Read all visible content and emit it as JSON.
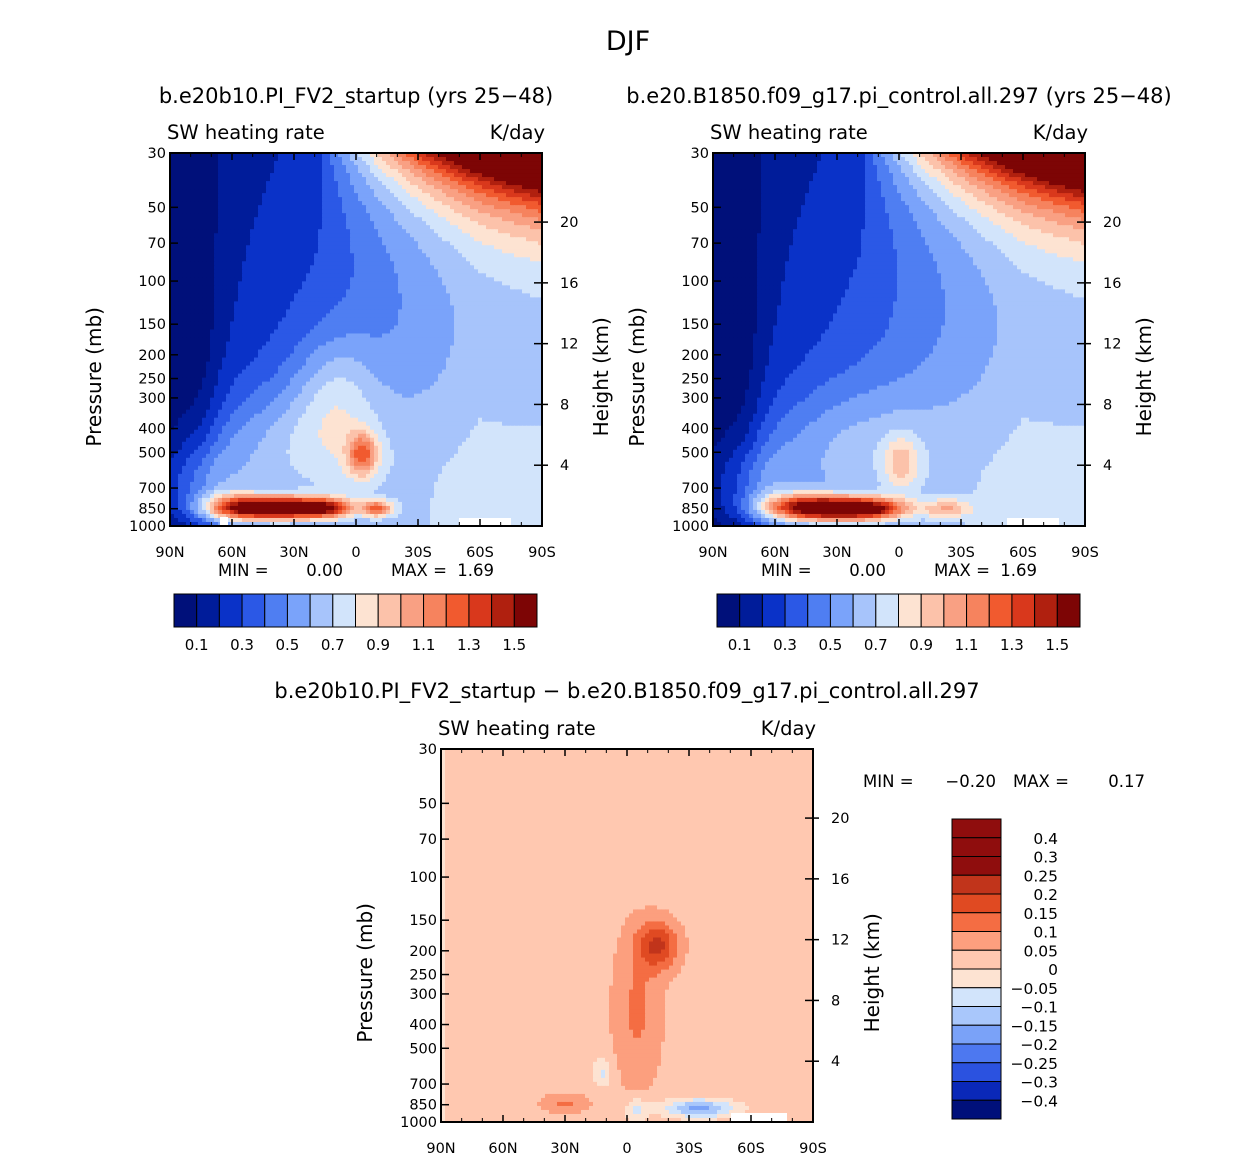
{
  "title": "DJF",
  "panels": [
    {
      "run_title": "b.e20b10.PI_FV2_startup (yrs 25−48)",
      "left_label": "SW heating rate",
      "right_label": "K/day",
      "ylabel": "Pressure (mb)",
      "y2label": "Height (km)",
      "min_label": "MIN =",
      "min_value": "0.00",
      "max_label": "MAX =",
      "max_value": "1.69"
    },
    {
      "run_title": "b.e20.B1850.f09_g17.pi_control.all.297 (yrs 25−48)",
      "left_label": "SW heating rate",
      "right_label": "K/day",
      "ylabel": "Pressure (mb)",
      "y2label": "Height (km)",
      "min_label": "MIN =",
      "min_value": "0.00",
      "max_label": "MAX =",
      "max_value": "1.69"
    },
    {
      "run_title": "b.e20b10.PI_FV2_startup − b.e20.B1850.f09_g17.pi_control.all.297",
      "left_label": "SW heating rate",
      "right_label": "K/day",
      "ylabel": "Pressure (mb)",
      "y2label": "Height (km)",
      "min_label": "MIN =",
      "min_value": "−0.20",
      "max_label": "MAX =",
      "max_value": "0.17"
    }
  ],
  "chart_data": [
    {
      "type": "heatmap",
      "subtype": "filled contour, zonal-mean latitude-pressure cross section",
      "title": "b.e20b10.PI_FV2_startup (yrs 25−48)",
      "variable": "SW heating rate",
      "units": "K/day",
      "xlabel": "",
      "x_ticks": [
        "90N",
        "60N",
        "30N",
        "0",
        "30S",
        "60S",
        "90S"
      ],
      "xlim": [
        90,
        -90
      ],
      "ylabel": "Pressure (mb)",
      "y_ticks": [
        30,
        50,
        70,
        100,
        150,
        200,
        250,
        300,
        400,
        500,
        700,
        850,
        1000
      ],
      "ylim": [
        1000,
        30
      ],
      "y_scale": "log",
      "y2label": "Height (km)",
      "y2_ticks": [
        4,
        8,
        12,
        16,
        20
      ],
      "min": 0.0,
      "max": 1.69,
      "contour_levels": [
        0.1,
        0.2,
        0.3,
        0.4,
        0.5,
        0.6,
        0.7,
        0.8,
        0.9,
        1.0,
        1.1,
        1.2,
        1.3,
        1.4,
        1.5
      ],
      "colorbar_labels": [
        "0.1",
        "0.3",
        "0.5",
        "0.7",
        "0.9",
        "1.1",
        "1.3",
        "1.5"
      ],
      "features": [
        {
          "lat": 43,
          "p": 850,
          "value": 1.55,
          "lon_spread": 16,
          "p_spread": 0.08
        },
        {
          "lat": 22,
          "p": 840,
          "value": 1.2,
          "lon_spread": 14,
          "p_spread": 0.07
        },
        {
          "lat": 13,
          "p": 850,
          "value": 0.95,
          "lon_spread": 7,
          "p_spread": 0.06
        },
        {
          "lat": 60,
          "p": 830,
          "value": 1.05,
          "lon_spread": 12,
          "p_spread": 0.09
        },
        {
          "lat": -10,
          "p": 850,
          "value": 1.2,
          "lon_spread": 5,
          "p_spread": 0.05
        },
        {
          "lat": -3,
          "p": 510,
          "value": 1.15,
          "lon_spread": 5,
          "p_spread": 0.14
        },
        {
          "lat": 30,
          "p": 500,
          "value": 0.92,
          "lon_spread": 35,
          "p_spread": 0.45
        },
        {
          "lat": 75,
          "p": 700,
          "value": 0.9,
          "lon_spread": 14,
          "p_spread": 0.3
        },
        {
          "lat": 10,
          "p": 280,
          "value": 0.82,
          "lon_spread": 14,
          "p_spread": 0.4
        }
      ]
    },
    {
      "type": "heatmap",
      "subtype": "filled contour, zonal-mean latitude-pressure cross section",
      "title": "b.e20.B1850.f09_g17.pi_control.all.297 (yrs 25−48)",
      "variable": "SW heating rate",
      "units": "K/day",
      "xlabel": "",
      "x_ticks": [
        "90N",
        "60N",
        "30N",
        "0",
        "30S",
        "60S",
        "90S"
      ],
      "xlim": [
        90,
        -90
      ],
      "ylabel": "Pressure (mb)",
      "y_ticks": [
        30,
        50,
        70,
        100,
        150,
        200,
        250,
        300,
        400,
        500,
        700,
        850,
        1000
      ],
      "ylim": [
        1000,
        30
      ],
      "y_scale": "log",
      "y2label": "Height (km)",
      "y2_ticks": [
        4,
        8,
        12,
        16,
        20
      ],
      "min": 0.0,
      "max": 1.69,
      "contour_levels": [
        0.1,
        0.2,
        0.3,
        0.4,
        0.5,
        0.6,
        0.7,
        0.8,
        0.9,
        1.0,
        1.1,
        1.2,
        1.3,
        1.4,
        1.5
      ],
      "colorbar_labels": [
        "0.1",
        "0.3",
        "0.5",
        "0.7",
        "0.9",
        "1.1",
        "1.3",
        "1.5"
      ],
      "features": [
        {
          "lat": 33,
          "p": 850,
          "value": 1.6,
          "lon_spread": 16,
          "p_spread": 0.08
        },
        {
          "lat": 12,
          "p": 850,
          "value": 1.25,
          "lon_spread": 12,
          "p_spread": 0.07
        },
        {
          "lat": 50,
          "p": 830,
          "value": 1.1,
          "lon_spread": 14,
          "p_spread": 0.09
        },
        {
          "lat": -1,
          "p": 550,
          "value": 0.9,
          "lon_spread": 6,
          "p_spread": 0.18
        },
        {
          "lat": 25,
          "p": 500,
          "value": 0.85,
          "lon_spread": 35,
          "p_spread": 0.45
        },
        {
          "lat": 70,
          "p": 700,
          "value": 0.85,
          "lon_spread": 16,
          "p_spread": 0.3
        },
        {
          "lat": -23,
          "p": 850,
          "value": 0.95,
          "lon_spread": 8,
          "p_spread": 0.06
        }
      ]
    },
    {
      "type": "heatmap",
      "subtype": "filled contour, difference field",
      "title": "b.e20b10.PI_FV2_startup − b.e20.B1850.f09_g17.pi_control.all.297",
      "variable": "SW heating rate",
      "units": "K/day",
      "xlabel": "",
      "x_ticks": [
        "90N",
        "60N",
        "30N",
        "0",
        "30S",
        "60S",
        "90S"
      ],
      "xlim": [
        90,
        -90
      ],
      "ylabel": "Pressure (mb)",
      "y_ticks": [
        30,
        50,
        70,
        100,
        150,
        200,
        250,
        300,
        400,
        500,
        700,
        850,
        1000
      ],
      "ylim": [
        1000,
        30
      ],
      "y_scale": "log",
      "y2label": "Height (km)",
      "y2_ticks": [
        4,
        8,
        12,
        16,
        20
      ],
      "min": -0.2,
      "max": 0.17,
      "contour_levels": [
        -0.4,
        -0.3,
        -0.25,
        -0.2,
        -0.15,
        -0.1,
        -0.05,
        0,
        0.05,
        0.1,
        0.15,
        0.2,
        0.25,
        0.3,
        0.4
      ],
      "colorbar_labels": [
        "0.4",
        "0.3",
        "0.25",
        "0.2",
        "0.15",
        "0.1",
        "0.05",
        "0",
        "−0.05",
        "−0.1",
        "−0.15",
        "−0.2",
        "−0.25",
        "−0.3",
        "−0.4"
      ],
      "features": [
        {
          "lat": -15,
          "p": 190,
          "value": 0.17,
          "lon_spread": 7,
          "p_spread": 0.16
        },
        {
          "lat": -5,
          "p": 350,
          "value": 0.08,
          "lon_spread": 8,
          "p_spread": 0.5
        },
        {
          "lat": 30,
          "p": 840,
          "value": 0.08,
          "lon_spread": 8,
          "p_spread": 0.06
        },
        {
          "lat": -35,
          "p": 880,
          "value": -0.2,
          "lon_spread": 12,
          "p_spread": 0.06
        },
        {
          "lat": 12,
          "p": 630,
          "value": -0.09,
          "lon_spread": 3,
          "p_spread": 0.1
        },
        {
          "lat": -5,
          "p": 900,
          "value": -0.1,
          "lon_spread": 4,
          "p_spread": 0.09
        }
      ]
    }
  ]
}
